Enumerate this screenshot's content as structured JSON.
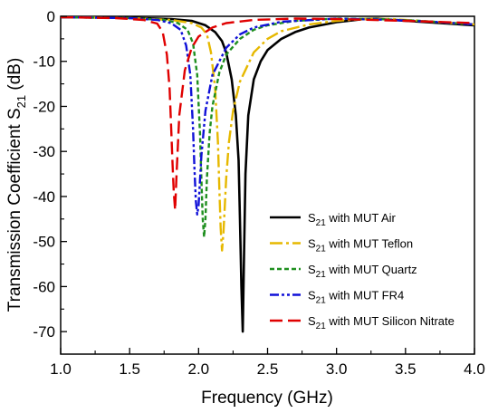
{
  "chart_data": {
    "type": "line",
    "title": "",
    "xlabel": "Frequency (GHz)",
    "ylabel": "Transmission Coefficient S",
    "ylabel_sub": "21",
    "ylabel_unit": " (dB)",
    "xlim": [
      1.0,
      4.0
    ],
    "ylim": [
      -75,
      0
    ],
    "xticks": [
      "1.0",
      "1.5",
      "2.0",
      "2.5",
      "3.0",
      "3.5",
      "4.0"
    ],
    "yticks": [
      "0",
      "-10",
      "-20",
      "-30",
      "-40",
      "-50",
      "-60",
      "-70"
    ],
    "grid": false,
    "legend_position": "lower-right",
    "series": [
      {
        "name": "with MUT Air",
        "legend_prefix": "S",
        "legend_sub": "21",
        "color": "#000000",
        "dash": "solid",
        "x": [
          1.0,
          1.5,
          1.8,
          1.95,
          2.05,
          2.12,
          2.17,
          2.2,
          2.24,
          2.27,
          2.29,
          2.3,
          2.31,
          2.32,
          2.33,
          2.34,
          2.36,
          2.4,
          2.45,
          2.5,
          2.6,
          2.7,
          2.8,
          3.0,
          3.2,
          3.3,
          3.4,
          3.5,
          3.6,
          3.7,
          3.8,
          4.0
        ],
        "y": [
          -0.2,
          -0.3,
          -0.6,
          -1.0,
          -2.0,
          -3.5,
          -5.5,
          -8.0,
          -14.0,
          -22.0,
          -32.0,
          -45.0,
          -60.0,
          -70.0,
          -52.0,
          -35.0,
          -22.0,
          -14.0,
          -10.0,
          -7.5,
          -5.0,
          -3.5,
          -2.5,
          -1.3,
          -0.6,
          -0.5,
          -0.8,
          -1.0,
          -1.2,
          -1.4,
          -1.6,
          -2.0
        ]
      },
      {
        "name": "with MUT Teflon",
        "legend_prefix": "S",
        "legend_sub": "21",
        "color": "#e6b800",
        "dash": "dashdot",
        "x": [
          1.0,
          1.5,
          1.8,
          1.95,
          2.02,
          2.06,
          2.09,
          2.12,
          2.14,
          2.15,
          2.16,
          2.17,
          2.18,
          2.19,
          2.2,
          2.22,
          2.25,
          2.3,
          2.4,
          2.5,
          2.6,
          2.8,
          3.0,
          3.2,
          3.4,
          3.6,
          3.8,
          4.0
        ],
        "y": [
          -0.2,
          -0.4,
          -0.8,
          -1.5,
          -2.5,
          -4.0,
          -8.0,
          -16.0,
          -28.0,
          -38.0,
          -47.0,
          -52.0,
          -48.0,
          -42.0,
          -36.0,
          -28.0,
          -21.0,
          -14.5,
          -8.0,
          -5.0,
          -3.3,
          -1.8,
          -1.0,
          -0.6,
          -0.6,
          -1.0,
          -1.4,
          -1.8
        ]
      },
      {
        "name": "with MUT Quartz",
        "legend_prefix": "S",
        "legend_sub": "21",
        "color": "#1f8f1f",
        "dash": "dash-short",
        "x": [
          1.0,
          1.5,
          1.75,
          1.85,
          1.92,
          1.96,
          1.99,
          2.01,
          2.02,
          2.03,
          2.04,
          2.05,
          2.06,
          2.08,
          2.1,
          2.15,
          2.2,
          2.3,
          2.4,
          2.5,
          2.7,
          3.0,
          3.3,
          3.6,
          4.0
        ],
        "y": [
          -0.2,
          -0.4,
          -0.8,
          -1.5,
          -3.0,
          -6.0,
          -13.0,
          -26.0,
          -36.0,
          -45.0,
          -49.0,
          -45.0,
          -36.0,
          -26.0,
          -20.0,
          -12.5,
          -8.5,
          -5.0,
          -3.0,
          -2.0,
          -1.0,
          -0.5,
          -0.6,
          -1.0,
          -1.8
        ]
      },
      {
        "name": "with MUT FR4",
        "legend_prefix": "S",
        "legend_sub": "21",
        "color": "#1010d8",
        "dash": "dashdotdot",
        "x": [
          1.0,
          1.5,
          1.7,
          1.8,
          1.87,
          1.91,
          1.94,
          1.96,
          1.97,
          1.98,
          1.99,
          2.0,
          2.02,
          2.05,
          2.1,
          2.2,
          2.3,
          2.4,
          2.6,
          3.0,
          3.4,
          3.7,
          4.0
        ],
        "y": [
          -0.2,
          -0.4,
          -0.8,
          -1.5,
          -3.0,
          -6.5,
          -13.0,
          -25.0,
          -34.0,
          -41.0,
          -44.0,
          -42.0,
          -31.0,
          -21.0,
          -13.0,
          -7.0,
          -4.0,
          -2.5,
          -1.2,
          -0.5,
          -0.8,
          -1.2,
          -1.8
        ]
      },
      {
        "name": "with MUT Silicon Nitrate",
        "legend_prefix": "S",
        "legend_sub": "21",
        "color": "#e00000",
        "dash": "dash-long",
        "x": [
          1.0,
          1.4,
          1.6,
          1.7,
          1.74,
          1.77,
          1.79,
          1.8,
          1.81,
          1.82,
          1.83,
          1.84,
          1.86,
          1.9,
          1.95,
          2.0,
          2.1,
          2.2,
          2.4,
          2.7,
          3.0,
          3.5,
          4.0
        ],
        "y": [
          -0.2,
          -0.4,
          -0.8,
          -1.6,
          -3.5,
          -8.5,
          -16.0,
          -24.0,
          -32.0,
          -39.0,
          -43.0,
          -35.0,
          -22.0,
          -12.0,
          -7.0,
          -4.5,
          -2.5,
          -1.5,
          -0.8,
          -0.5,
          -0.6,
          -1.0,
          -1.5
        ]
      }
    ]
  }
}
